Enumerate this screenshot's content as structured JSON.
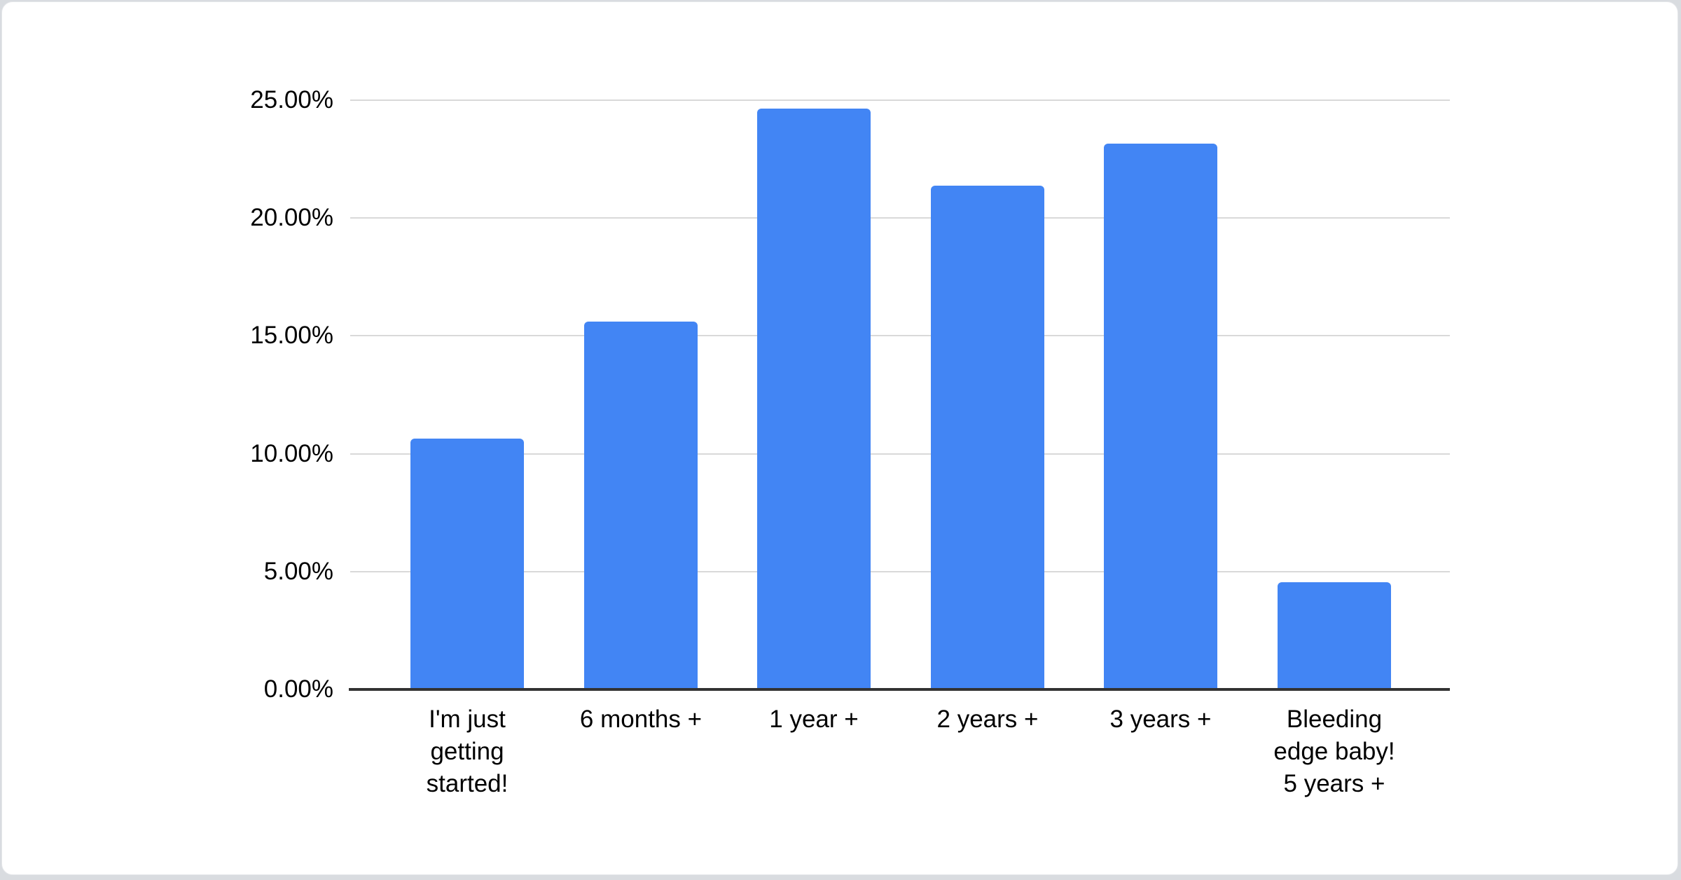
{
  "card": {
    "background": "#ffffff",
    "page_background": "#d9dce0",
    "border_color": "#e4e6e9"
  },
  "chart_data": {
    "type": "bar",
    "title": "",
    "xlabel": "",
    "ylabel": "",
    "legend": "none",
    "grid": true,
    "categories": [
      "I'm just getting started!",
      "6 months +",
      "1 year +",
      "2 years +",
      "3 years +",
      "Bleeding edge baby! 5 years +"
    ],
    "tick_labels": [
      "I'm just\ngetting\nstarted!",
      "6 months +",
      "1 year +",
      "2 years +",
      "3 years +",
      "Bleeding\nedge baby!\n5 years +"
    ],
    "values": [
      10.64,
      15.61,
      24.64,
      21.37,
      23.16,
      4.55
    ],
    "value_unit": "%",
    "ylim": [
      0,
      25
    ],
    "y_ticks": [
      {
        "value": 25,
        "label": "25.00%"
      },
      {
        "value": 20,
        "label": "20.00%"
      },
      {
        "value": 15,
        "label": "15.00%"
      },
      {
        "value": 10,
        "label": "10.00%"
      },
      {
        "value": 5,
        "label": "5.00%"
      },
      {
        "value": 0,
        "label": "0.00%"
      }
    ],
    "bar_color": "#4285f4",
    "gridline_color": "#d9d9d9",
    "axis_line_color": "#333333",
    "label_color": "#000000"
  }
}
